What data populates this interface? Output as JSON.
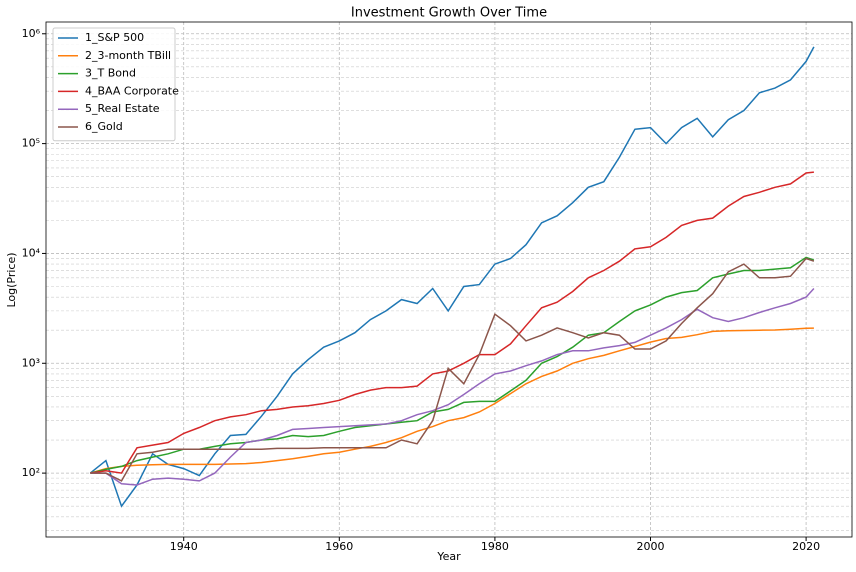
{
  "chart_data": {
    "type": "line",
    "title": "Investment Growth Over Time",
    "x_label": "Year",
    "y_label": "Log(Price)",
    "log_scale": true,
    "grid": true,
    "legend_position": "upper-left",
    "xlim": [
      1922.3,
      2025.9
    ],
    "xticks": [
      1940,
      1960,
      1980,
      2000,
      2020
    ],
    "ylim": [
      26.2,
      1280000
    ],
    "yticks": [
      {
        "value": 100,
        "label": "10²"
      },
      {
        "value": 1000,
        "label": "10³"
      },
      {
        "value": 10000,
        "label": "10⁴"
      },
      {
        "value": 100000,
        "label": "10⁵"
      },
      {
        "value": 1000000,
        "label": "10⁶"
      }
    ],
    "yminorticks": [
      30,
      40,
      50,
      60,
      70,
      80,
      90,
      200,
      300,
      400,
      500,
      600,
      700,
      800,
      900,
      2000,
      3000,
      4000,
      5000,
      6000,
      7000,
      8000,
      9000,
      20000,
      30000,
      40000,
      50000,
      60000,
      70000,
      80000,
      90000,
      200000,
      300000,
      400000,
      500000,
      600000,
      700000,
      800000,
      900000
    ],
    "x": [
      1928,
      1930,
      1932,
      1934,
      1936,
      1938,
      1940,
      1942,
      1944,
      1946,
      1948,
      1950,
      1952,
      1954,
      1956,
      1958,
      1960,
      1962,
      1964,
      1966,
      1968,
      1970,
      1972,
      1974,
      1976,
      1978,
      1980,
      1982,
      1984,
      1986,
      1988,
      1990,
      1992,
      1994,
      1996,
      1998,
      2000,
      2002,
      2004,
      2006,
      2008,
      2010,
      2012,
      2014,
      2016,
      2018,
      2020,
      2021
    ],
    "series": [
      {
        "name": "1_S&P 500",
        "color": "#1f77b4",
        "values": [
          100,
          130,
          50,
          78,
          150,
          120,
          110,
          95,
          150,
          220,
          225,
          330,
          500,
          800,
          1080,
          1400,
          1600,
          1900,
          2500,
          3000,
          3800,
          3500,
          4800,
          3000,
          5000,
          5200,
          8000,
          9000,
          12000,
          19000,
          22000,
          29000,
          40000,
          45000,
          75000,
          135000,
          140000,
          100000,
          140000,
          170000,
          115000,
          165000,
          200000,
          290000,
          320000,
          380000,
          560000,
          760000
        ]
      },
      {
        "name": "2_3-month TBill",
        "color": "#ff7f0e",
        "values": [
          100,
          110,
          115,
          118,
          119,
          120,
          120,
          120,
          120,
          121,
          122,
          125,
          130,
          135,
          142,
          150,
          155,
          165,
          175,
          190,
          210,
          240,
          265,
          300,
          320,
          360,
          430,
          530,
          650,
          760,
          850,
          1000,
          1100,
          1180,
          1300,
          1420,
          1560,
          1680,
          1720,
          1820,
          1950,
          1980,
          1990,
          2000,
          2010,
          2040,
          2080,
          2090
        ]
      },
      {
        "name": "3_T Bond",
        "color": "#2ca02c",
        "values": [
          100,
          108,
          115,
          130,
          140,
          150,
          165,
          165,
          175,
          185,
          190,
          200,
          205,
          220,
          215,
          220,
          240,
          260,
          270,
          280,
          290,
          300,
          360,
          380,
          440,
          450,
          450,
          560,
          700,
          1000,
          1150,
          1400,
          1800,
          1900,
          2400,
          3000,
          3400,
          4000,
          4400,
          4600,
          6000,
          6500,
          7000,
          7000,
          7200,
          7400,
          9200,
          8700
        ]
      },
      {
        "name": "4_BAA Corporate",
        "color": "#d62728",
        "values": [
          100,
          105,
          100,
          170,
          180,
          190,
          230,
          260,
          300,
          325,
          340,
          370,
          380,
          400,
          410,
          430,
          460,
          520,
          570,
          600,
          600,
          620,
          800,
          850,
          1000,
          1200,
          1200,
          1500,
          2200,
          3200,
          3600,
          4500,
          6000,
          7000,
          8500,
          11000,
          11500,
          14000,
          18000,
          20000,
          21000,
          27000,
          33000,
          36000,
          40000,
          43000,
          54000,
          55000
        ]
      },
      {
        "name": "5_Real Estate",
        "color": "#9467bd",
        "values": [
          100,
          100,
          80,
          78,
          88,
          90,
          88,
          85,
          100,
          140,
          190,
          200,
          220,
          250,
          255,
          260,
          265,
          270,
          275,
          280,
          300,
          340,
          370,
          420,
          520,
          650,
          800,
          850,
          950,
          1050,
          1200,
          1300,
          1300,
          1380,
          1450,
          1550,
          1800,
          2100,
          2500,
          3100,
          2600,
          2400,
          2600,
          2900,
          3200,
          3500,
          4000,
          4800
        ]
      },
      {
        "name": "6_Gold",
        "color": "#8c564b",
        "values": [
          100,
          100,
          85,
          150,
          155,
          165,
          165,
          165,
          165,
          165,
          165,
          165,
          168,
          168,
          168,
          170,
          170,
          170,
          170,
          170,
          200,
          185,
          300,
          900,
          650,
          1200,
          2800,
          2200,
          1600,
          1800,
          2100,
          1900,
          1700,
          1900,
          1800,
          1350,
          1350,
          1600,
          2300,
          3200,
          4300,
          6800,
          8000,
          6000,
          6000,
          6200,
          9000,
          8500
        ]
      }
    ]
  }
}
